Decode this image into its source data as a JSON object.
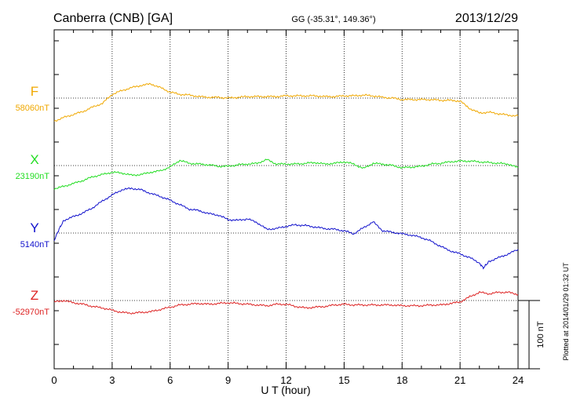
{
  "header": {
    "station": "Canberra (CNB)  [GA]",
    "coords": "GG (-35.31°, 149.36°)",
    "date": "2013/12/29"
  },
  "plotted_note": "Plotted at 2014/01/29 01:32 UT",
  "chart_data": {
    "type": "line",
    "xlabel": "U T (hour)",
    "xlim": [
      0,
      24
    ],
    "xticks": [
      0,
      3,
      6,
      9,
      12,
      15,
      18,
      21,
      24
    ],
    "scale_bar": "100 nT",
    "scale_bar_value_nT": 100,
    "grid": true,
    "series": [
      {
        "name": "F",
        "baseline_label": "58060nT",
        "baseline_nT": 58060,
        "color": "#f0a800",
        "x": [
          0,
          0.5,
          1,
          1.5,
          2,
          2.5,
          3,
          3.5,
          4,
          4.5,
          5,
          5.5,
          6,
          6.5,
          7,
          7.5,
          8,
          8.5,
          9,
          9.5,
          10,
          10.5,
          11,
          11.5,
          12,
          12.5,
          13,
          13.5,
          14,
          14.5,
          15,
          15.5,
          16,
          16.5,
          17,
          17.5,
          18,
          18.5,
          19,
          19.5,
          20,
          20.5,
          21,
          21.5,
          22,
          22.5,
          23,
          23.5,
          24
        ],
        "values": [
          -31,
          -26,
          -22,
          -18,
          -12,
          -7,
          5,
          10,
          14,
          17,
          19,
          14,
          8,
          5,
          4,
          2,
          1,
          1,
          0,
          1,
          2,
          2,
          2,
          2,
          3,
          3,
          3,
          3,
          2,
          2,
          3,
          3,
          4,
          3,
          1,
          0,
          -2,
          -2,
          -2,
          -2,
          -3,
          -3,
          -4,
          -14,
          -20,
          -19,
          -21,
          -23,
          -24
        ]
      },
      {
        "name": "X",
        "baseline_label": "23190nT",
        "baseline_nT": 23190,
        "color": "#22dd22",
        "x": [
          0,
          0.5,
          1,
          1.5,
          2,
          2.5,
          3,
          3.5,
          4,
          4.5,
          5,
          5.5,
          6,
          6.5,
          7,
          7.5,
          8,
          8.5,
          9,
          9.5,
          10,
          10.5,
          11,
          11.5,
          12,
          12.5,
          13,
          13.5,
          14,
          14.5,
          15,
          15.5,
          16,
          16.5,
          17,
          17.5,
          18,
          18.5,
          19,
          19.5,
          20,
          20.5,
          21,
          21.5,
          22,
          22.5,
          23,
          23.5,
          24
        ],
        "values": [
          -31,
          -28,
          -24,
          -20,
          -15,
          -12,
          -9,
          -10,
          -13,
          -12,
          -9,
          -7,
          -2,
          7,
          3,
          2,
          1,
          -1,
          -1,
          1,
          2,
          3,
          8,
          2,
          2,
          2,
          3,
          4,
          2,
          3,
          5,
          2,
          -4,
          3,
          2,
          0,
          -3,
          -2,
          -1,
          2,
          3,
          5,
          6,
          6,
          5,
          4,
          3,
          2,
          -3
        ]
      },
      {
        "name": "Y",
        "baseline_label": "5140nT",
        "baseline_nT": 5140,
        "color": "#1010cc",
        "x": [
          0,
          0.25,
          0.5,
          1,
          1.5,
          2,
          2.5,
          3,
          3.5,
          4,
          4.5,
          5,
          5.5,
          6,
          6.5,
          7,
          7.5,
          8,
          8.5,
          9,
          9.5,
          10,
          10.5,
          11,
          11.5,
          12,
          12.5,
          13,
          13.5,
          14,
          14.5,
          15,
          15.5,
          16,
          16.5,
          17,
          17.5,
          18,
          18.5,
          19,
          19.5,
          20,
          20.5,
          21,
          21.5,
          22,
          22.2,
          22.5,
          23,
          23.5,
          24
        ],
        "values": [
          -10,
          5,
          17,
          22,
          27,
          34,
          43,
          51,
          58,
          60,
          58,
          53,
          49,
          44,
          38,
          32,
          30,
          26,
          24,
          18,
          17,
          19,
          14,
          5,
          6,
          9,
          11,
          10,
          8,
          6,
          5,
          3,
          -1,
          7,
          15,
          3,
          1,
          -1,
          -3,
          -6,
          -11,
          -18,
          -24,
          -28,
          -33,
          -40,
          -47,
          -38,
          -33,
          -28,
          -22
        ]
      },
      {
        "name": "Z",
        "baseline_label": "-52970nT",
        "baseline_nT": -52970,
        "color": "#dd2222",
        "x": [
          0,
          0.5,
          1,
          1.5,
          2,
          2.5,
          3,
          3.5,
          4,
          4.5,
          5,
          5.5,
          6,
          6.5,
          7,
          7.5,
          8,
          8.5,
          9,
          9.5,
          10,
          10.5,
          11,
          11.5,
          12,
          12.5,
          13,
          13.5,
          14,
          14.5,
          15,
          15.5,
          16,
          16.5,
          17,
          17.5,
          18,
          18.5,
          19,
          19.5,
          20,
          20.5,
          21,
          21.5,
          22,
          22.5,
          23,
          23.5,
          24
        ],
        "values": [
          -2,
          0,
          -3,
          -5,
          -8,
          -10,
          -13,
          -16,
          -17,
          -16,
          -15,
          -12,
          -9,
          -6,
          -5,
          -4,
          -5,
          -4,
          -3,
          -4,
          -5,
          -6,
          -7,
          -5,
          -5,
          -8,
          -10,
          -9,
          -8,
          -6,
          -5,
          -6,
          -6,
          -6,
          -6,
          -6,
          -7,
          -7,
          -7,
          -6,
          -6,
          -4,
          -2,
          5,
          11,
          9,
          11,
          11,
          8
        ]
      }
    ]
  }
}
